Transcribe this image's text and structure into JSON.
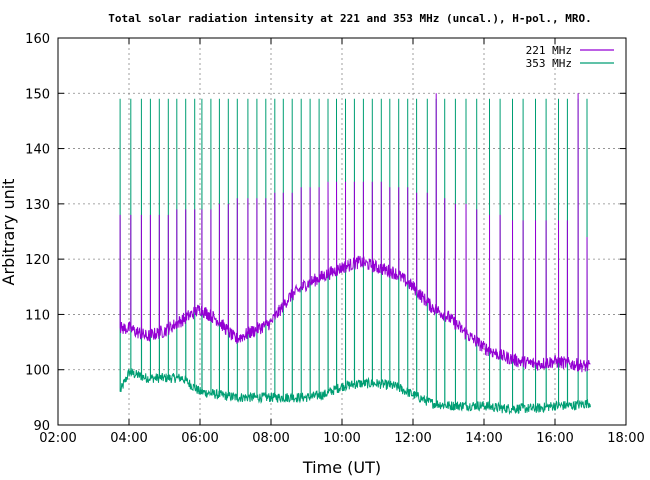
{
  "chart_data": {
    "type": "line",
    "title": "Total solar radiation intensity at 221 and 353 MHz (uncal.), H-pol., MRO.",
    "xlabel": "Time (UT)",
    "ylabel": "Arbitrary unit",
    "xlim": [
      2.0,
      18.0
    ],
    "ylim": [
      90,
      160
    ],
    "xticks": [
      "02:00",
      "04:00",
      "06:00",
      "08:00",
      "10:00",
      "12:00",
      "14:00",
      "16:00",
      "18:00"
    ],
    "yticks": [
      "90",
      "100",
      "110",
      "120",
      "130",
      "140",
      "150",
      "160"
    ],
    "grid": true,
    "legend_position": "top-right",
    "series": [
      {
        "name": "221 MHz",
        "color": "#9400d3",
        "x": [
          3.75,
          4.0,
          4.5,
          5.0,
          5.5,
          6.0,
          6.5,
          7.0,
          7.5,
          8.0,
          8.5,
          9.0,
          9.5,
          10.0,
          10.5,
          11.0,
          11.5,
          12.0,
          12.5,
          13.0,
          13.5,
          14.0,
          14.5,
          15.0,
          15.5,
          16.0,
          16.5,
          17.0
        ],
        "values": [
          107.5,
          107.5,
          106,
          107,
          109,
          111,
          109,
          105.5,
          107,
          108.5,
          113,
          115.5,
          117,
          118.5,
          119.5,
          118.5,
          117.5,
          115,
          111.5,
          109.5,
          106.5,
          104,
          102.5,
          101.5,
          101,
          101.5,
          101,
          100.5
        ],
        "burst_times": [
          3.75,
          4.05,
          4.35,
          4.6,
          4.85,
          5.1,
          5.35,
          5.6,
          5.85,
          6.05,
          6.3,
          6.55,
          6.8,
          7.05,
          7.35,
          7.6,
          7.85,
          8.1,
          8.35,
          8.6,
          8.85,
          9.1,
          9.35,
          9.6,
          9.85,
          10.1,
          10.35,
          10.6,
          10.85,
          11.1,
          11.35,
          11.6,
          11.85,
          12.1,
          12.4,
          12.65,
          12.9,
          13.2,
          13.5,
          13.8,
          14.15,
          14.45,
          14.8,
          15.1,
          15.45,
          15.75,
          16.1,
          16.35,
          16.65,
          16.9
        ],
        "burst_peaks": [
          128,
          128,
          128,
          128,
          128,
          128,
          129,
          129,
          129,
          129,
          129,
          130,
          130,
          131,
          131,
          131,
          131,
          132,
          132,
          132,
          133,
          133,
          133,
          134,
          134,
          134,
          134,
          134,
          134,
          134,
          133,
          133,
          133,
          132,
          132,
          150,
          131,
          130,
          130,
          129,
          128,
          128,
          127,
          127,
          127,
          127,
          127,
          127,
          150,
          124
        ]
      },
      {
        "name": "353 MHz",
        "color": "#009e73",
        "x": [
          3.75,
          4.0,
          4.5,
          5.0,
          5.5,
          6.0,
          6.5,
          7.0,
          7.5,
          8.0,
          8.5,
          9.0,
          9.5,
          10.0,
          10.5,
          11.0,
          11.5,
          12.0,
          12.5,
          13.0,
          13.5,
          14.0,
          14.5,
          15.0,
          15.5,
          16.0,
          16.5,
          17.0
        ],
        "values": [
          96,
          99.5,
          98.5,
          98.5,
          98.5,
          96,
          95.5,
          95,
          95,
          95,
          95,
          95,
          95.5,
          97,
          97.5,
          97.5,
          97,
          95.5,
          94,
          93.5,
          93.5,
          93.5,
          93,
          93,
          93,
          93.5,
          93.5,
          94
        ],
        "burst_peak": 149
      }
    ]
  }
}
